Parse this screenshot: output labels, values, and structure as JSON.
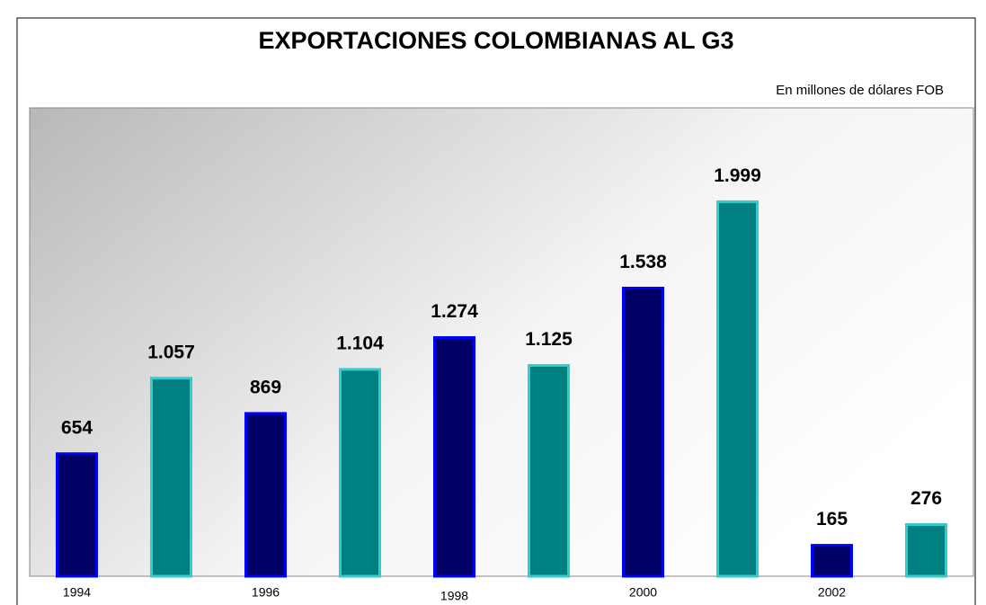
{
  "chart_data": {
    "type": "bar",
    "title": "EXPORTACIONES COLOMBIANAS AL G3",
    "subtitle": "En millones de dólares FOB",
    "categories": [
      "1994",
      null,
      "1996",
      null,
      "1998",
      null,
      "2000",
      null,
      "2002",
      null
    ],
    "values": [
      654,
      1057,
      869,
      1104,
      1274,
      1125,
      1538,
      1999,
      165,
      276
    ],
    "value_labels": [
      "654",
      "1.057",
      "869",
      "1.104",
      "1.274",
      "1.125",
      "1.538",
      "1.999",
      "165",
      "276"
    ],
    "colors": [
      "#000066",
      "#008080",
      "#000066",
      "#008080",
      "#000066",
      "#008080",
      "#000066",
      "#008080",
      "#000066",
      "#008080"
    ],
    "edge_colors": [
      "#0000ff",
      "#33cccc",
      "#0000ff",
      "#33cccc",
      "#0000ff",
      "#33cccc",
      "#0000ff",
      "#33cccc",
      "#0000ff",
      "#33cccc"
    ],
    "ylim": [
      0,
      2500
    ],
    "grid": false
  }
}
